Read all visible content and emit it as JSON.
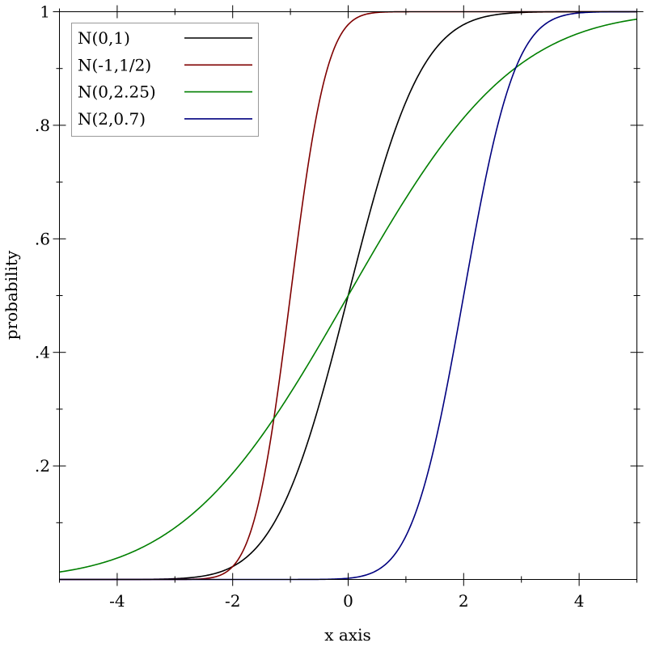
{
  "chart_data": {
    "type": "line",
    "title": "",
    "xlabel": "x axis",
    "ylabel": "probability",
    "xlim": [
      -5,
      5
    ],
    "ylim": [
      0,
      1
    ],
    "grid": false,
    "legend_position": "top-left",
    "x_ticks": [
      -4,
      -2,
      0,
      2,
      4
    ],
    "x_tick_labels": [
      "-4",
      "-2",
      "0",
      "2",
      "4"
    ],
    "y_ticks": [
      0.2,
      0.4,
      0.6,
      0.8,
      1
    ],
    "y_tick_labels": [
      ".2",
      ".4",
      ".6",
      ".8",
      "1"
    ],
    "x": [
      -5,
      -4,
      -3,
      -2,
      -1,
      0,
      1,
      2,
      3,
      4,
      5
    ],
    "series": [
      {
        "name": "N(0,1)",
        "color": "#000000",
        "mean": 0,
        "sd": 1,
        "values": [
          0.0,
          3e-05,
          0.0013,
          0.0228,
          0.1587,
          0.5,
          0.8413,
          0.9772,
          0.9987,
          0.99997,
          1.0
        ]
      },
      {
        "name": "N(-1,1/2)",
        "color": "#7f0000",
        "mean": -1,
        "sd": 0.5,
        "values": [
          0.0,
          0.0,
          3e-05,
          0.0228,
          0.5,
          0.9772,
          0.99997,
          1.0,
          1.0,
          1.0,
          1.0
        ]
      },
      {
        "name": "N(0,2.25)",
        "color": "#007f00",
        "mean": 0,
        "sd": 2.25,
        "values": [
          0.0131,
          0.0377,
          0.0912,
          0.187,
          0.3284,
          0.5,
          0.6716,
          0.813,
          0.9088,
          0.9623,
          0.9869
        ]
      },
      {
        "name": "N(2,0.7)",
        "color": "#00007f",
        "mean": 2,
        "sd": 0.7,
        "values": [
          0.0,
          0.0,
          0.0,
          0.0,
          0.0,
          0.0021,
          0.0766,
          0.5,
          0.9234,
          0.9979,
          1.0
        ]
      }
    ]
  }
}
